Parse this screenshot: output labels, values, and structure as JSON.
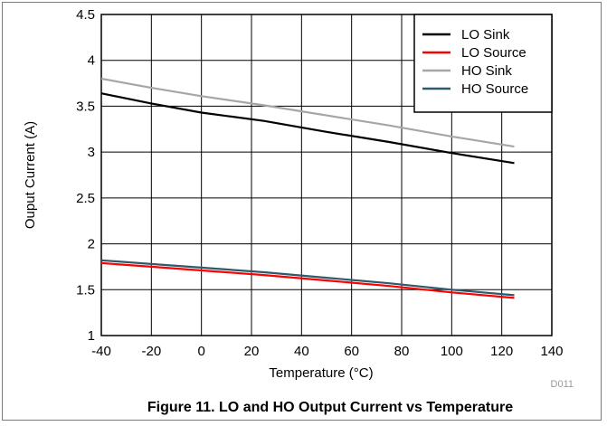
{
  "chart_data": {
    "type": "line",
    "title": "",
    "xlabel": "Temperature (°C)",
    "ylabel": "Ouput Current (A)",
    "xlim": [
      -40,
      140
    ],
    "ylim": [
      1,
      4.5
    ],
    "xticks": [
      "-40",
      "-20",
      "0",
      "20",
      "40",
      "60",
      "80",
      "100",
      "120",
      "140"
    ],
    "yticks": [
      "1",
      "1.5",
      "2",
      "2.5",
      "3",
      "3.5",
      "4",
      "4.5"
    ],
    "grid": true,
    "legend_position": "top-right",
    "series": [
      {
        "name": "LO Sink",
        "color": "#000000",
        "x": [
          -40,
          -20,
          0,
          25,
          50,
          75,
          100,
          125
        ],
        "y": [
          3.64,
          3.53,
          3.43,
          3.34,
          3.22,
          3.11,
          2.99,
          2.88
        ]
      },
      {
        "name": "LO Source",
        "color": "#ff0000",
        "x": [
          -40,
          -20,
          0,
          25,
          50,
          75,
          100,
          125
        ],
        "y": [
          1.79,
          1.75,
          1.71,
          1.66,
          1.6,
          1.54,
          1.47,
          1.41
        ]
      },
      {
        "name": "HO Sink",
        "color": "#a6a6a6",
        "x": [
          -40,
          -20,
          0,
          25,
          50,
          75,
          100,
          125
        ],
        "y": [
          3.8,
          3.7,
          3.61,
          3.51,
          3.4,
          3.29,
          3.17,
          3.06
        ]
      },
      {
        "name": "HO Source",
        "color": "#2e5a6e",
        "x": [
          -40,
          -20,
          0,
          25,
          50,
          75,
          100,
          125
        ],
        "y": [
          1.82,
          1.78,
          1.74,
          1.69,
          1.63,
          1.57,
          1.5,
          1.44
        ]
      }
    ]
  },
  "figure_code": "D011",
  "caption": "Figure 11. LO and HO Output Current vs Temperature"
}
